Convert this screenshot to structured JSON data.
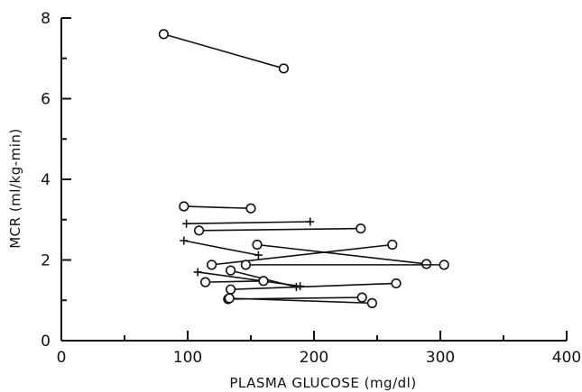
{
  "chart_data": {
    "type": "line",
    "xlabel": "PLASMA GLUCOSE (mg/dl)",
    "ylabel": "MCR (ml/kg-min)",
    "xlim": [
      0,
      400
    ],
    "ylim": [
      0,
      8
    ],
    "xticks": [
      0,
      100,
      200,
      300,
      400
    ],
    "yticks": [
      0,
      2,
      4,
      6,
      8
    ],
    "grid": false,
    "series": [
      {
        "points": [
          [
            81,
            7.6
          ],
          [
            176,
            6.75
          ]
        ],
        "markers": [
          "o",
          "o"
        ]
      },
      {
        "points": [
          [
            97,
            3.33
          ],
          [
            150,
            3.28
          ]
        ],
        "markers": [
          "o",
          "o"
        ]
      },
      {
        "points": [
          [
            99,
            2.9
          ],
          [
            197,
            2.95
          ]
        ],
        "markers": [
          "+",
          "+"
        ]
      },
      {
        "points": [
          [
            109,
            2.73
          ],
          [
            237,
            2.78
          ]
        ],
        "markers": [
          "o",
          "o"
        ]
      },
      {
        "points": [
          [
            97,
            2.48
          ],
          [
            156,
            2.12
          ]
        ],
        "markers": [
          "+",
          "+"
        ]
      },
      {
        "points": [
          [
            155,
            2.38
          ],
          [
            289,
            1.9
          ]
        ],
        "markers": [
          "o",
          "o"
        ]
      },
      {
        "points": [
          [
            119,
            1.88
          ],
          [
            262,
            2.38
          ]
        ],
        "markers": [
          "o",
          "o"
        ]
      },
      {
        "points": [
          [
            146,
            1.88
          ],
          [
            303,
            1.88
          ]
        ],
        "markers": [
          "o",
          "o"
        ]
      },
      {
        "points": [
          [
            108,
            1.7
          ],
          [
            189,
            1.35
          ]
        ],
        "markers": [
          "+",
          "+"
        ]
      },
      {
        "points": [
          [
            134,
            1.74
          ],
          [
            186,
            1.33
          ]
        ],
        "markers": [
          "o",
          "+"
        ]
      },
      {
        "points": [
          [
            114,
            1.45
          ],
          [
            160,
            1.48
          ]
        ],
        "markers": [
          "o",
          "o"
        ]
      },
      {
        "points": [
          [
            134,
            1.27
          ],
          [
            265,
            1.42
          ]
        ],
        "markers": [
          "o",
          "o"
        ]
      },
      {
        "points": [
          [
            132,
            1.03
          ],
          [
            238,
            1.07
          ]
        ],
        "markers": [
          "o",
          "o"
        ]
      },
      {
        "points": [
          [
            133,
            1.05
          ],
          [
            246,
            0.93
          ]
        ],
        "markers": [
          "o",
          "o"
        ]
      }
    ]
  }
}
